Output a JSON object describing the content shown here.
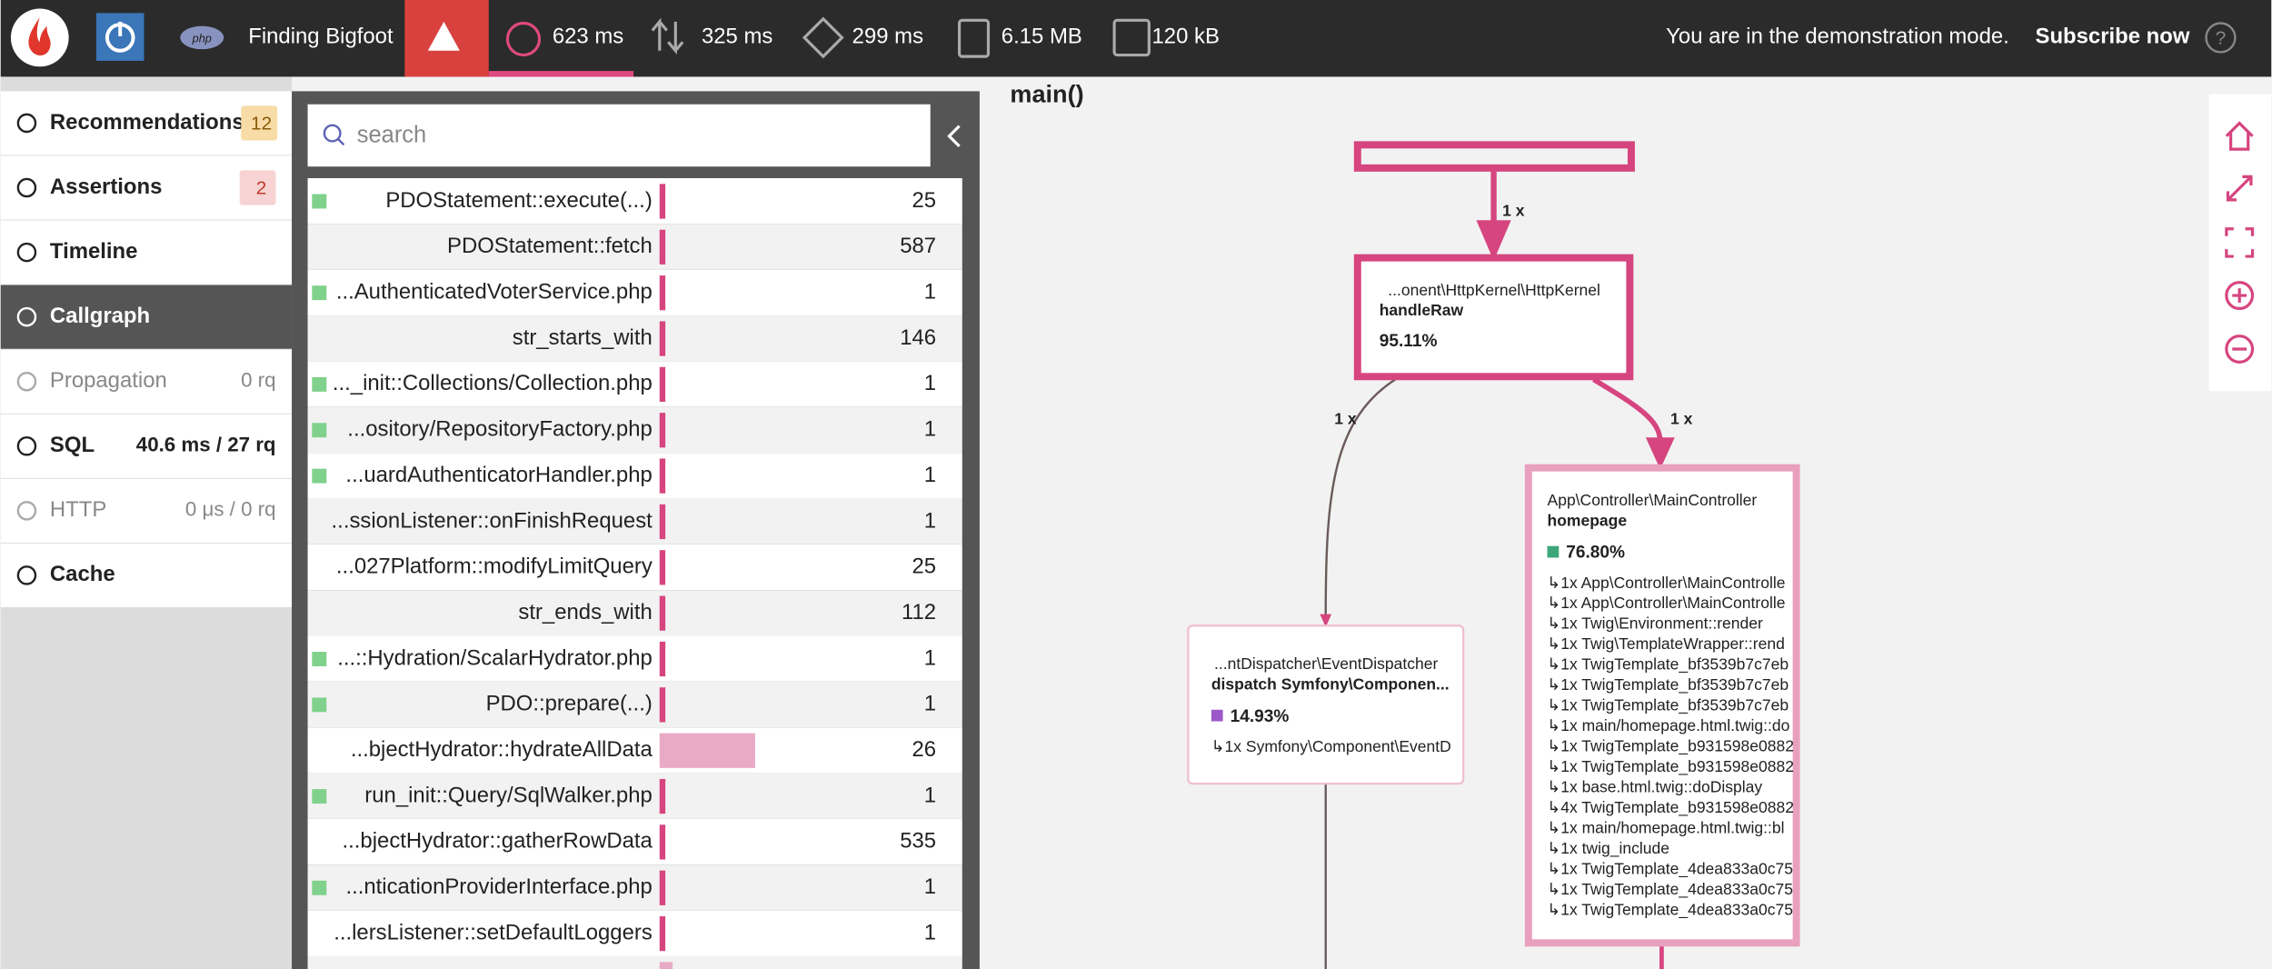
{
  "header": {
    "app_name": "Finding Bigfoot",
    "metrics": [
      "623 ms",
      "325 ms",
      "299 ms",
      "6.15 MB",
      "120 kB"
    ],
    "demo_text": "You are in the demonstration mode.",
    "subscribe": "Subscribe now"
  },
  "sidebar": {
    "items": [
      {
        "label": "Recommendations",
        "badge": 12
      },
      {
        "label": "Assertions",
        "badge": 2
      },
      {
        "label": "Timeline"
      },
      {
        "label": "Callgraph"
      },
      {
        "label": "Propagation",
        "value": "0 rq"
      },
      {
        "label": "SQL",
        "value": "40.6 ms / 27 rq"
      },
      {
        "label": "HTTP",
        "value": "0 μs / 0 rq"
      },
      {
        "label": "Cache"
      }
    ]
  },
  "search_placeholder": "search",
  "functions": [
    {
      "name": "PDOStatement::execute(...)",
      "count": 25
    },
    {
      "name": "PDOStatement::fetch",
      "count": 587
    },
    {
      "name": "...AuthenticatedVoterService.php",
      "count": 1
    },
    {
      "name": "str_starts_with",
      "count": 146
    },
    {
      "name": "..._init::Collections/Collection.php",
      "count": 1
    },
    {
      "name": "...ository/RepositoryFactory.php",
      "count": 1
    },
    {
      "name": "...uardAuthenticatorHandler.php",
      "count": 1
    },
    {
      "name": "...ssionListener::onFinishRequest",
      "count": 1
    },
    {
      "name": "...027Platform::modifyLimitQuery",
      "count": 25
    },
    {
      "name": "str_ends_with",
      "count": 112
    },
    {
      "name": "...::Hydration/ScalarHydrator.php",
      "count": 1
    },
    {
      "name": "PDO::prepare(...)",
      "count": 1
    },
    {
      "name": "...bjectHydrator::hydrateAllData",
      "count": 26
    },
    {
      "name": "run_init::Query/SqlWalker.php",
      "count": 1
    },
    {
      "name": "...bjectHydrator::gatherRowData",
      "count": 535
    },
    {
      "name": "...nticationProviderInterface.php",
      "count": 1
    },
    {
      "name": "...lersListener::setDefaultLoggers",
      "count": 1
    }
  ],
  "callgraph": {
    "title": "main()",
    "edge_labels": [
      "1 x",
      "1 x",
      "1 x"
    ],
    "nodes": [
      {
        "namespace": "...onent\\HttpKernel\\HttpKernel",
        "method": "handleRaw",
        "percent": "95.11%"
      },
      {
        "namespace": "...ntDispatcher\\EventDispatcher",
        "method": "dispatch",
        "argument": "Symfony\\Componen...",
        "percent": "14.93%",
        "calls": [
          "↳1x Symfony\\Component\\EventD"
        ]
      },
      {
        "namespace": "App\\Controller\\MainController",
        "method": "homepage",
        "percent": "76.80%",
        "calls": [
          "↳1x App\\Controller\\MainControlle",
          "↳1x App\\Controller\\MainControlle",
          "↳1x Twig\\Environment::render",
          "↳1x Twig\\TemplateWrapper::rend",
          "↳1x TwigTemplate_bf3539b7c7eb",
          "↳1x TwigTemplate_bf3539b7c7eb",
          "↳1x TwigTemplate_bf3539b7c7eb",
          "↳1x main/homepage.html.twig::do",
          "↳1x TwigTemplate_b931598e0882",
          "↳1x TwigTemplate_b931598e0882",
          "↳1x base.html.twig::doDisplay",
          "↳4x TwigTemplate_b931598e0882",
          "↳1x main/homepage.html.twig::bl",
          "↳1x twig_include",
          "↳1x TwigTemplate_4dea833a0c75",
          "↳1x TwigTemplate_4dea833a0c75",
          "↳1x TwigTemplate_4dea833a0c75"
        ]
      }
    ]
  }
}
